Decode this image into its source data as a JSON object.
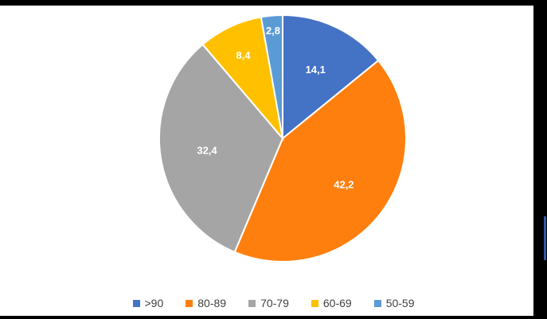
{
  "chart_data": {
    "type": "pie",
    "categories": [
      ">90",
      "80-89",
      "70-79",
      "60-69",
      "50-59"
    ],
    "values": [
      14.1,
      42.2,
      32.4,
      8.4,
      2.8
    ],
    "labels": [
      "14,1",
      "42,2",
      "32,4",
      "8,4",
      "2,8"
    ],
    "colors": [
      "#4472C4",
      "#FF7F0E",
      "#A5A5A5",
      "#FFC000",
      "#5B9BD5"
    ],
    "start": "12 o'clock",
    "direction": "clockwise",
    "legend": "bottom"
  }
}
